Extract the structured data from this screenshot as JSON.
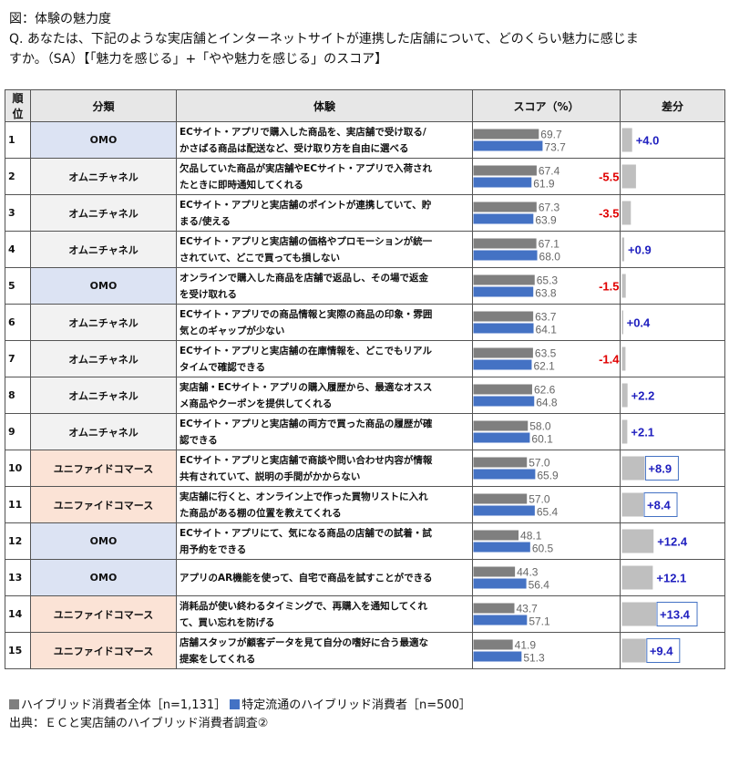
{
  "title": {
    "line1": "図：体験の魅力度",
    "line2": "Q. あなたは、下記のような実店舗とインターネットサイトが連携した店舗について、どのくらい魅力に感じま",
    "line3": "すか。（SA）【「魅力を感じる」+「やや魅力を感じる」のスコア】"
  },
  "headers": {
    "rank": "順位",
    "category": "分類",
    "experience": "体験",
    "score": "スコア（%）",
    "diff": "差分"
  },
  "chart_data": {
    "type": "bar",
    "series": [
      {
        "name": "ハイブリッド消費者全体［n=1,131］",
        "color": "#7f7f7f",
        "values": [
          69.7,
          67.4,
          67.3,
          67.1,
          65.3,
          63.7,
          63.5,
          62.6,
          58.0,
          57.0,
          57.0,
          48.1,
          44.3,
          43.7,
          41.9
        ]
      },
      {
        "name": "特定流通のハイブリッド消費者［n=500］",
        "color": "#4472c4",
        "values": [
          73.7,
          61.9,
          63.9,
          68.0,
          63.8,
          64.1,
          62.1,
          64.8,
          60.1,
          65.9,
          65.4,
          60.5,
          56.4,
          57.1,
          51.3
        ]
      }
    ],
    "diff_labels": [
      "+4.0",
      "-5.5",
      "-3.5",
      "+0.9",
      "-1.5",
      "+0.4",
      "-1.4",
      "+2.2",
      "+2.1",
      "+8.9",
      "+8.4",
      "+12.4",
      "+12.1",
      "+13.4",
      "+9.4"
    ],
    "diff_values": [
      4.0,
      -5.5,
      -3.5,
      0.9,
      -1.5,
      0.4,
      -1.4,
      2.2,
      2.1,
      8.9,
      8.4,
      12.4,
      12.1,
      13.4,
      9.4
    ],
    "diff_boxed": [
      false,
      false,
      false,
      false,
      false,
      false,
      false,
      false,
      false,
      true,
      true,
      false,
      false,
      true,
      true
    ],
    "score_labels_a": [
      "69.7",
      "67.4",
      "67.3",
      "67.1",
      "65.3",
      "63.7",
      "63.5",
      "62.6",
      "58.0",
      "57.0",
      "57.0",
      "48.1",
      "44.3",
      "43.7",
      "41.9"
    ],
    "score_labels_b": [
      "73.7",
      "61.9",
      "63.9",
      "68.0",
      "63.8",
      "64.1",
      "62.1",
      "64.8",
      "60.1",
      "65.9",
      "65.4",
      "60.5",
      "56.4",
      "57.1",
      "51.3"
    ],
    "colors": {
      "overall": "#7f7f7f",
      "specific": "#4472c4",
      "diff_bar": "#bfbfbf",
      "positive": "#1f1fbf",
      "negative": "#e00000"
    }
  },
  "rows": [
    {
      "rank": "1",
      "category": "OMO",
      "cat_class": "omo",
      "exp1": "ECサイト・アプリで購入した商品を、実店舗で受け取る/",
      "exp2": "かさばる商品は配送など、受け取り方を自由に選べる"
    },
    {
      "rank": "2",
      "category": "オムニチャネル",
      "cat_class": "omni",
      "exp1": "欠品していた商品が実店舗やECサイト・アプリで入荷され",
      "exp2": "たときに即時通知してくれる"
    },
    {
      "rank": "3",
      "category": "オムニチャネル",
      "cat_class": "omni",
      "exp1": "ECサイト・アプリと実店舗のポイントが連携していて、貯",
      "exp2": "まる/使える"
    },
    {
      "rank": "4",
      "category": "オムニチャネル",
      "cat_class": "omni",
      "exp1": "ECサイト・アプリと実店舗の価格やプロモーションが統一",
      "exp2": "されていて、どこで買っても損しない"
    },
    {
      "rank": "5",
      "category": "OMO",
      "cat_class": "omo",
      "exp1": "オンラインで購入した商品を店舗で返品し、その場で返金",
      "exp2": "を受け取れる"
    },
    {
      "rank": "6",
      "category": "オムニチャネル",
      "cat_class": "omni",
      "exp1": "ECサイト・アプリでの商品情報と実際の商品の印象・雰囲",
      "exp2": "気とのギャップが少ない"
    },
    {
      "rank": "7",
      "category": "オムニチャネル",
      "cat_class": "omni",
      "exp1": "ECサイト・アプリと実店舗の在庫情報を、どこでもリアル",
      "exp2": "タイムで確認できる"
    },
    {
      "rank": "8",
      "category": "オムニチャネル",
      "cat_class": "omni",
      "exp1": "実店舗・ECサイト・アプリの購入履歴から、最適なオスス",
      "exp2": "メ商品やクーポンを提供してくれる"
    },
    {
      "rank": "9",
      "category": "オムニチャネル",
      "cat_class": "omni",
      "exp1": "ECサイト・アプリと実店舗の両方で買った商品の履歴が確",
      "exp2": "認できる"
    },
    {
      "rank": "10",
      "category": "ユニファイドコマース",
      "cat_class": "uni",
      "exp1": "ECサイト・アプリと実店舗で商談や問い合わせ内容が情報",
      "exp2": "共有されていて、説明の手間がかからない"
    },
    {
      "rank": "11",
      "category": "ユニファイドコマース",
      "cat_class": "uni",
      "exp1": "実店舗に行くと、オンライン上で作った買物リストに入れ",
      "exp2": "た商品がある棚の位置を教えてくれる"
    },
    {
      "rank": "12",
      "category": "OMO",
      "cat_class": "omo",
      "exp1": "ECサイト・アプリにて、気になる商品の店舗での試着・試",
      "exp2": "用予約をできる"
    },
    {
      "rank": "13",
      "category": "OMO",
      "cat_class": "omo",
      "exp1": "アプリのAR機能を使って、自宅で商品を試すことができる",
      "exp2": ""
    },
    {
      "rank": "14",
      "category": "ユニファイドコマース",
      "cat_class": "uni",
      "exp1": "消耗品が使い終わるタイミングで、再購入を通知してくれ",
      "exp2": "て、買い忘れを防げる"
    },
    {
      "rank": "15",
      "category": "ユニファイドコマース",
      "cat_class": "uni",
      "exp1": "店舗スタッフが顧客データを見て自分の嗜好に合う最適な",
      "exp2": "提案をしてくれる"
    }
  ],
  "legend": {
    "overall": "ハイブリッド消費者全体［n=1,131］",
    "specific": "特定流通のハイブリッド消費者［n=500］"
  },
  "source": "出典：ＥＣと実店舗のハイブリッド消費者調査②"
}
